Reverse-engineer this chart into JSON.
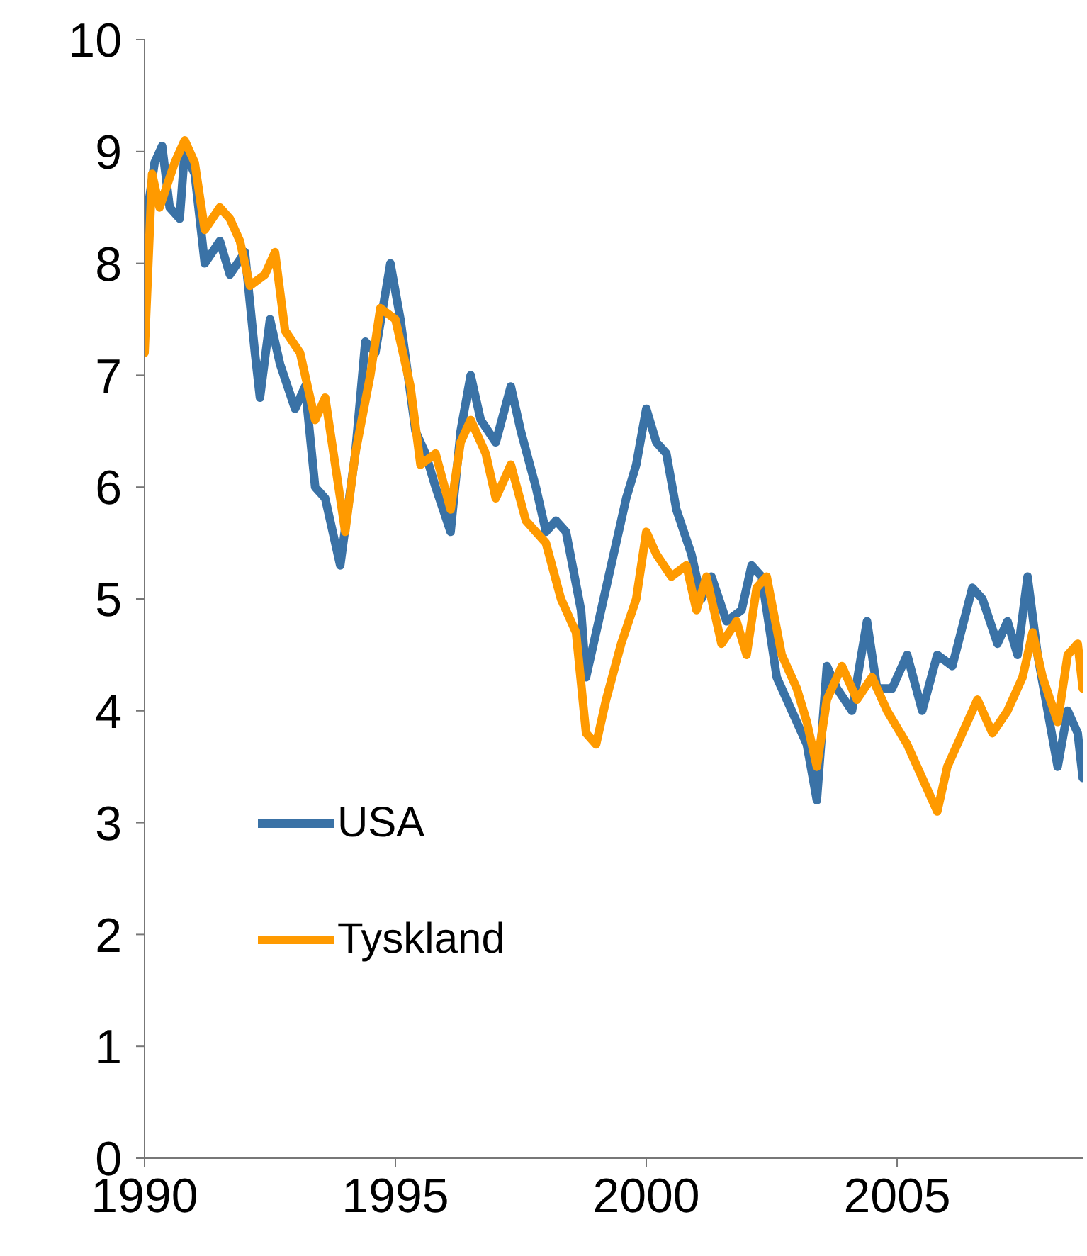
{
  "chart_data": {
    "type": "line",
    "xlim": [
      1990,
      2008.7
    ],
    "xticks": [
      1990,
      1995,
      2000,
      2005
    ],
    "ylim": [
      0,
      10
    ],
    "yticks": [
      0,
      1,
      2,
      3,
      4,
      5,
      6,
      7,
      8,
      9,
      10
    ],
    "grid": false,
    "legend": "bottom left",
    "marker": "none",
    "line_style": "solid",
    "series": [
      {
        "name": "USA",
        "color": "#3a72a6",
        "x": [
          1990.0,
          1990.2,
          1990.35,
          1990.5,
          1990.7,
          1990.8,
          1991.0,
          1991.2,
          1991.5,
          1991.7,
          1992.0,
          1992.2,
          1992.3,
          1992.5,
          1992.7,
          1993.0,
          1993.2,
          1993.4,
          1993.6,
          1993.9,
          1994.2,
          1994.4,
          1994.6,
          1994.9,
          1995.1,
          1995.4,
          1995.6,
          1995.8,
          1996.1,
          1996.3,
          1996.5,
          1996.7,
          1997.0,
          1997.3,
          1997.5,
          1997.8,
          1998.0,
          1998.2,
          1998.4,
          1998.7,
          1998.8,
          1999.0,
          1999.3,
          1999.6,
          1999.8,
          2000.0,
          2000.2,
          2000.4,
          2000.6,
          2000.9,
          2001.1,
          2001.3,
          2001.6,
          2001.9,
          2002.1,
          2002.3,
          2002.6,
          2002.9,
          2003.2,
          2003.4,
          2003.6,
          2003.8,
          2004.1,
          2004.4,
          2004.6,
          2004.9,
          2005.2,
          2005.5,
          2005.8,
          2006.1,
          2006.5,
          2006.7,
          2007.0,
          2007.2,
          2007.4,
          2007.6,
          2007.8,
          2008.0,
          2008.2,
          2008.4,
          2008.6,
          2008.7
        ],
        "values": [
          8.3,
          8.9,
          9.05,
          8.5,
          8.4,
          9.0,
          8.8,
          8.0,
          8.2,
          7.9,
          8.1,
          7.2,
          6.8,
          7.5,
          7.1,
          6.7,
          6.9,
          6.0,
          5.9,
          5.3,
          6.3,
          7.3,
          7.2,
          8.0,
          7.5,
          6.5,
          6.3,
          6.0,
          5.6,
          6.5,
          7.0,
          6.6,
          6.4,
          6.9,
          6.5,
          6.0,
          5.6,
          5.7,
          5.6,
          4.9,
          4.3,
          4.7,
          5.3,
          5.9,
          6.2,
          6.7,
          6.4,
          6.3,
          5.8,
          5.4,
          5.0,
          5.2,
          4.8,
          4.9,
          5.3,
          5.2,
          4.3,
          4.0,
          3.7,
          3.2,
          4.4,
          4.2,
          4.0,
          4.8,
          4.2,
          4.2,
          4.5,
          4.0,
          4.5,
          4.4,
          5.1,
          5.0,
          4.6,
          4.8,
          4.5,
          5.2,
          4.5,
          4.0,
          3.5,
          4.0,
          3.8,
          3.4
        ]
      },
      {
        "name": "Tyskland",
        "color": "#ff9a00",
        "x": [
          1990.0,
          1990.15,
          1990.3,
          1990.6,
          1990.8,
          1991.0,
          1991.2,
          1991.5,
          1991.7,
          1991.9,
          1992.1,
          1992.4,
          1992.6,
          1992.8,
          1993.1,
          1993.4,
          1993.6,
          1993.9,
          1994.0,
          1994.2,
          1994.5,
          1994.7,
          1995.0,
          1995.3,
          1995.5,
          1995.8,
          1996.1,
          1996.3,
          1996.5,
          1996.8,
          1997.0,
          1997.3,
          1997.6,
          1998.0,
          1998.3,
          1998.6,
          1998.8,
          1999.0,
          1999.2,
          1999.5,
          1999.8,
          2000.0,
          2000.2,
          2000.5,
          2000.8,
          2001.0,
          2001.2,
          2001.5,
          2001.8,
          2002.0,
          2002.2,
          2002.4,
          2002.7,
          2003.0,
          2003.2,
          2003.4,
          2003.6,
          2003.9,
          2004.2,
          2004.5,
          2004.8,
          2005.2,
          2005.5,
          2005.8,
          2006.0,
          2006.3,
          2006.6,
          2006.9,
          2007.2,
          2007.5,
          2007.7,
          2007.9,
          2008.2,
          2008.4,
          2008.6,
          2008.7
        ],
        "values": [
          7.2,
          8.8,
          8.5,
          8.9,
          9.1,
          8.9,
          8.3,
          8.5,
          8.4,
          8.2,
          7.8,
          7.9,
          8.1,
          7.4,
          7.2,
          6.6,
          6.8,
          5.9,
          5.6,
          6.3,
          7.0,
          7.6,
          7.5,
          6.9,
          6.2,
          6.3,
          5.8,
          6.4,
          6.6,
          6.3,
          5.9,
          6.2,
          5.7,
          5.5,
          5.0,
          4.7,
          3.8,
          3.7,
          4.1,
          4.6,
          5.0,
          5.6,
          5.4,
          5.2,
          5.3,
          4.9,
          5.2,
          4.6,
          4.8,
          4.5,
          5.1,
          5.2,
          4.5,
          4.2,
          3.9,
          3.5,
          4.1,
          4.4,
          4.1,
          4.3,
          4.0,
          3.7,
          3.4,
          3.1,
          3.5,
          3.8,
          4.1,
          3.8,
          4.0,
          4.3,
          4.7,
          4.3,
          3.9,
          4.5,
          4.6,
          4.2
        ]
      }
    ]
  }
}
